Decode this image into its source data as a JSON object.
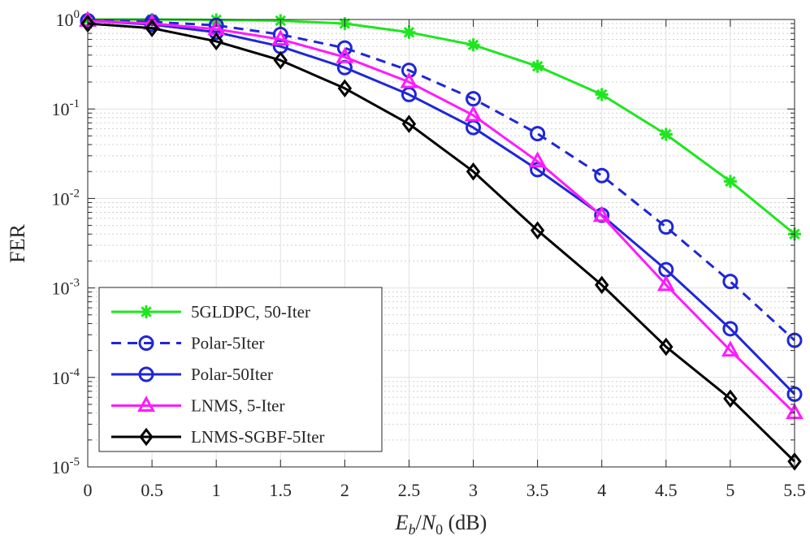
{
  "chart_data": {
    "type": "line",
    "title": "",
    "xlabel": "E_b/N_0 (dB)",
    "xlabel_parts": {
      "e": "E",
      "b": "b",
      "slash": "/",
      "n": "N",
      "zero": "0",
      "unit": " (dB)"
    },
    "ylabel": "FER",
    "yscale": "log",
    "xlim": [
      0,
      5.5
    ],
    "ylim": [
      1e-05,
      1
    ],
    "grid": true,
    "legend_position": "bottom-left",
    "x": [
      0,
      0.5,
      1,
      1.5,
      2,
      2.5,
      3,
      3.5,
      4,
      4.5,
      5,
      5.5
    ],
    "x_tick_labels": [
      "0",
      "0.5",
      "1",
      "1.5",
      "2",
      "2.5",
      "3",
      "3.5",
      "4",
      "4.5",
      "5",
      "5.5"
    ],
    "y_ticks": [
      {
        "value": 1,
        "base": "10",
        "exp": "0"
      },
      {
        "value": 0.1,
        "base": "10",
        "exp": "-1"
      },
      {
        "value": 0.01,
        "base": "10",
        "exp": "-2"
      },
      {
        "value": 0.001,
        "base": "10",
        "exp": "-3"
      },
      {
        "value": 0.0001,
        "base": "10",
        "exp": "-4"
      },
      {
        "value": 1e-05,
        "base": "10",
        "exp": "-5"
      }
    ],
    "series": [
      {
        "name": "5GLDPC, 50-Iter",
        "color": "#1ee61e",
        "marker": "asterisk",
        "dashed": false,
        "values": [
          1.0,
          1.0,
          0.99,
          0.97,
          0.9,
          0.72,
          0.52,
          0.3,
          0.145,
          0.052,
          0.0155,
          0.004
        ]
      },
      {
        "name": "Polar-5Iter",
        "color": "#1f27d6",
        "marker": "circle",
        "dashed": true,
        "values": [
          0.97,
          0.94,
          0.86,
          0.68,
          0.48,
          0.27,
          0.13,
          0.053,
          0.018,
          0.0048,
          0.00118,
          0.00026
        ]
      },
      {
        "name": "Polar-50Iter",
        "color": "#1f27d6",
        "marker": "circle",
        "dashed": false,
        "values": [
          0.97,
          0.88,
          0.72,
          0.5,
          0.29,
          0.145,
          0.062,
          0.021,
          0.0065,
          0.0016,
          0.00035,
          6.5e-05
        ]
      },
      {
        "name": "LNMS, 5-Iter",
        "color": "#ff1aff",
        "marker": "triangle",
        "dashed": false,
        "values": [
          0.97,
          0.9,
          0.78,
          0.6,
          0.38,
          0.2,
          0.085,
          0.026,
          0.0064,
          0.00108,
          0.0002,
          4e-05
        ]
      },
      {
        "name": "LNMS-SGBF-5Iter",
        "color": "#000000",
        "marker": "diamond",
        "dashed": false,
        "values": [
          0.9,
          0.8,
          0.57,
          0.35,
          0.17,
          0.068,
          0.02,
          0.0044,
          0.00108,
          0.00022,
          5.8e-05,
          1.15e-05
        ]
      }
    ]
  }
}
